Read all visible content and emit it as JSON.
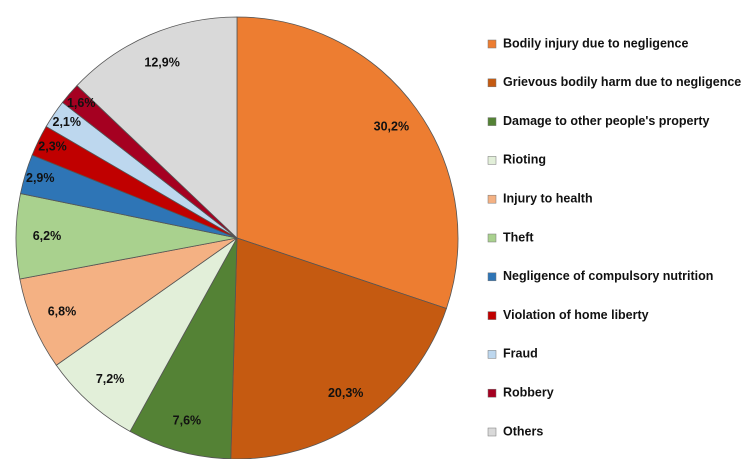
{
  "chart_data": {
    "type": "pie",
    "categories": [
      "Bodily injury due to negligence",
      "Grievous bodily harm due to negligence",
      "Damage to other people's property",
      "Rioting",
      "Injury to health",
      "Theft",
      "Negligence of compulsory nutrition",
      "Violation of home liberty",
      "Fraud",
      "Robbery",
      "Others"
    ],
    "values": [
      30.2,
      20.3,
      7.6,
      7.2,
      6.8,
      6.2,
      2.9,
      2.3,
      2.1,
      1.6,
      12.9
    ],
    "value_labels": [
      "30,2%",
      "20,3%",
      "7,6%",
      "7,2%",
      "6,8%",
      "6,2%",
      "2,9%",
      "2,3%",
      "2,1%",
      "1,6%",
      "12,9%"
    ],
    "colors": [
      "#ed7d31",
      "#c55a11",
      "#548235",
      "#e2efd9",
      "#f4b183",
      "#a9d18e",
      "#2e75b6",
      "#c00000",
      "#bdd7ee",
      "#a50021",
      "#d9d9d9"
    ],
    "legend": "right"
  }
}
